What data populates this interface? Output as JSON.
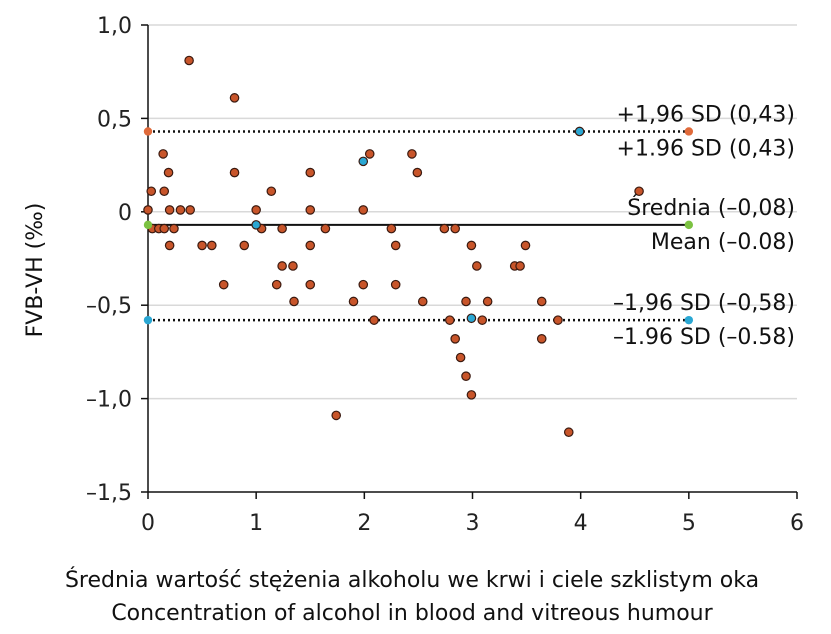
{
  "chart_data": {
    "type": "scatter",
    "xlabel_pl": "Średnia wartość stężenia alkoholu we krwi i ciele szklistym oka",
    "xlabel_en": "Concentration of alcohol in blood and vitreous humour",
    "ylabel": "FVB-VH (‰)",
    "xlim": [
      0,
      6
    ],
    "ylim": [
      -1.5,
      1.0
    ],
    "x_ticks": [
      {
        "value": 0,
        "label": "0"
      },
      {
        "value": 1,
        "label": "1"
      },
      {
        "value": 2,
        "label": "2"
      },
      {
        "value": 3,
        "label": "3"
      },
      {
        "value": 4,
        "label": "4"
      },
      {
        "value": 5,
        "label": "5"
      },
      {
        "value": 6,
        "label": "6"
      }
    ],
    "y_ticks": [
      {
        "value": 1.0,
        "label": "1,0"
      },
      {
        "value": 0.5,
        "label": "0,5"
      },
      {
        "value": 0,
        "label": "0"
      },
      {
        "value": -0.5,
        "label": "–0,5"
      },
      {
        "value": -1.0,
        "label": "–1,0"
      },
      {
        "value": -1.5,
        "label": "–1,5"
      }
    ],
    "grid": "horizontal",
    "reference_lines": [
      {
        "name": "upper",
        "y": 0.43,
        "style": "dotted",
        "label_pl": "+1,96 SD (0,43)",
        "label_en": "+1.96 SD (0,43)"
      },
      {
        "name": "mean",
        "y": -0.07,
        "style": "solid",
        "label_pl": "Średnia (–0,08)",
        "label_en": "Mean (–0.08)"
      },
      {
        "name": "lower",
        "y": -0.58,
        "style": "dotted",
        "label_pl": "–1,96 SD (–0,58)",
        "label_en": "–1.96 SD (–0.58)"
      }
    ],
    "colors": {
      "points": "#c8552a",
      "highlight": "#2aa7d3",
      "upper_marker": "#e06a3a",
      "mean_marker": "#7cc242",
      "line": "#111111",
      "grid": "#d9d9d9"
    },
    "series": [
      {
        "role": "data",
        "points": [
          [
            0.0,
            0.01
          ],
          [
            0.03,
            0.11
          ],
          [
            0.04,
            -0.09
          ],
          [
            0.1,
            -0.09
          ],
          [
            0.14,
            0.31
          ],
          [
            0.15,
            0.11
          ],
          [
            0.15,
            -0.09
          ],
          [
            0.19,
            0.21
          ],
          [
            0.2,
            0.01
          ],
          [
            0.2,
            -0.18
          ],
          [
            0.24,
            -0.09
          ],
          [
            0.3,
            0.01
          ],
          [
            0.38,
            0.81
          ],
          [
            0.39,
            0.01
          ],
          [
            0.5,
            -0.18
          ],
          [
            0.59,
            -0.18
          ],
          [
            0.7,
            -0.39
          ],
          [
            0.8,
            0.61
          ],
          [
            0.8,
            0.21
          ],
          [
            0.89,
            -0.18
          ],
          [
            1.0,
            0.01
          ],
          [
            1.05,
            -0.09
          ],
          [
            1.14,
            0.11
          ],
          [
            1.19,
            -0.39
          ],
          [
            1.24,
            -0.09
          ],
          [
            1.24,
            -0.29
          ],
          [
            1.34,
            -0.29
          ],
          [
            1.35,
            -0.48
          ],
          [
            1.5,
            0.21
          ],
          [
            1.5,
            0.01
          ],
          [
            1.5,
            -0.18
          ],
          [
            1.5,
            -0.39
          ],
          [
            1.64,
            -0.09
          ],
          [
            1.74,
            -1.09
          ],
          [
            1.9,
            -0.48
          ],
          [
            1.99,
            0.01
          ],
          [
            1.99,
            -0.39
          ],
          [
            2.05,
            0.31
          ],
          [
            2.09,
            -0.58
          ],
          [
            2.25,
            -0.09
          ],
          [
            2.29,
            -0.18
          ],
          [
            2.29,
            -0.39
          ],
          [
            2.44,
            0.31
          ],
          [
            2.49,
            0.21
          ],
          [
            2.54,
            -0.48
          ],
          [
            2.74,
            -0.09
          ],
          [
            2.79,
            -0.58
          ],
          [
            2.84,
            -0.09
          ],
          [
            2.84,
            -0.68
          ],
          [
            2.89,
            -0.78
          ],
          [
            2.94,
            -0.48
          ],
          [
            2.94,
            -0.88
          ],
          [
            2.99,
            -0.18
          ],
          [
            2.99,
            -0.98
          ],
          [
            3.04,
            -0.29
          ],
          [
            3.09,
            -0.58
          ],
          [
            3.14,
            -0.48
          ],
          [
            3.39,
            -0.29
          ],
          [
            3.44,
            -0.29
          ],
          [
            3.49,
            -0.18
          ],
          [
            3.64,
            -0.48
          ],
          [
            3.64,
            -0.68
          ],
          [
            3.79,
            -0.58
          ],
          [
            3.89,
            -1.18
          ],
          [
            4.54,
            0.11
          ]
        ]
      },
      {
        "role": "highlight",
        "points": [
          [
            1.0,
            -0.07
          ],
          [
            1.99,
            0.27
          ],
          [
            2.99,
            -0.57
          ],
          [
            3.99,
            0.43
          ]
        ]
      },
      {
        "role": "line-markers",
        "points": [
          {
            "x": 0,
            "y": 0.43,
            "color": "upper_marker"
          },
          {
            "x": 5,
            "y": 0.43,
            "color": "upper_marker"
          },
          {
            "x": 0,
            "y": -0.07,
            "color": "mean_marker"
          },
          {
            "x": 5,
            "y": -0.07,
            "color": "mean_marker"
          },
          {
            "x": 0,
            "y": -0.58,
            "color": "highlight"
          },
          {
            "x": 5,
            "y": -0.58,
            "color": "highlight"
          }
        ]
      }
    ]
  }
}
